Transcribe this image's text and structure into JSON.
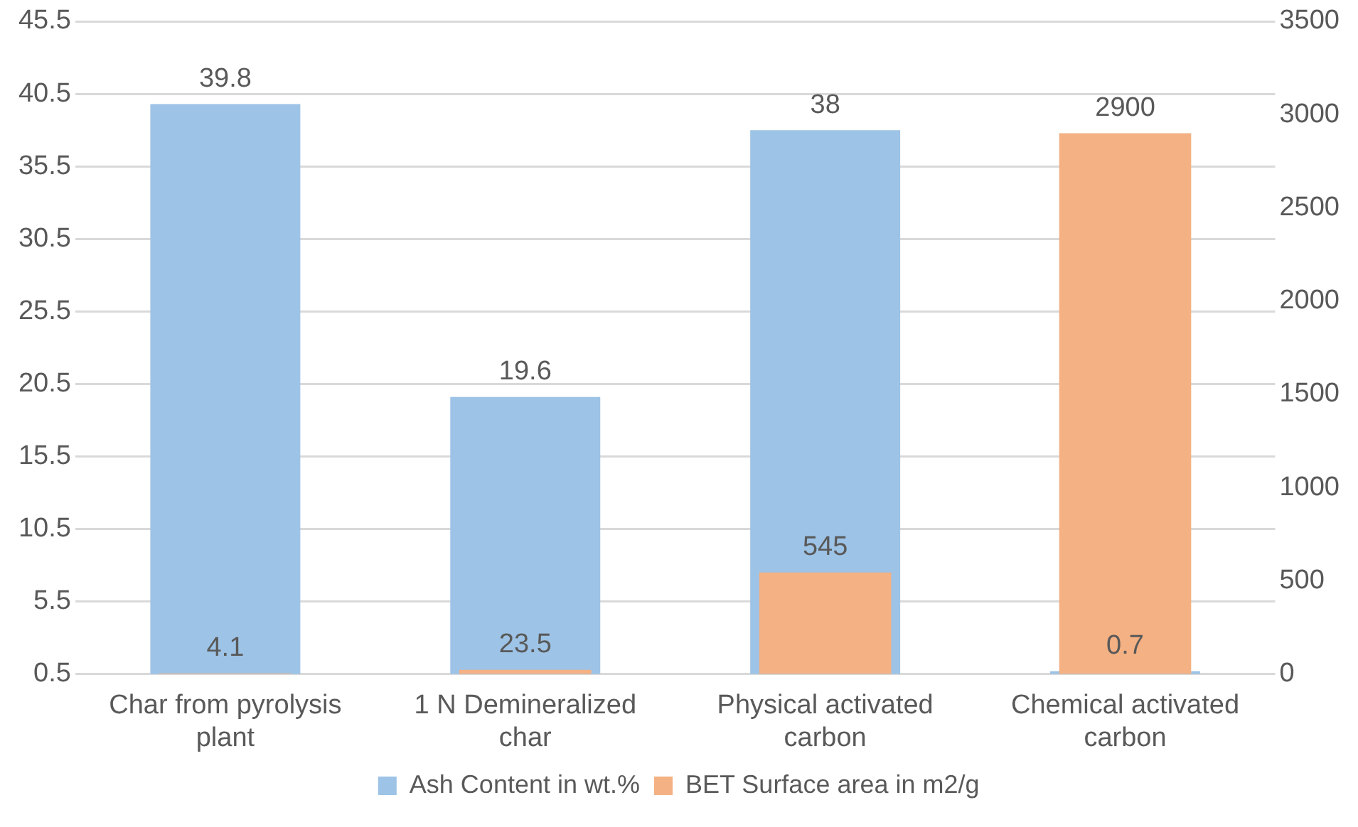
{
  "chart_data": {
    "type": "bar",
    "categories": [
      "Char from pyrolysis plant",
      "1 N Demineralized char",
      "Physical activated carbon",
      "Chemical activated carbon"
    ],
    "series": [
      {
        "name": "Ash Content in wt.%",
        "color": "#9dc3e6",
        "values": [
          39.8,
          19.6,
          38,
          0.7
        ]
      },
      {
        "name": "BET Surface area in m2/g",
        "color": "#f4b183",
        "axis": "y2",
        "values": [
          4.1,
          23.5,
          545,
          2900
        ]
      }
    ],
    "ylim": [
      0.5,
      45.5
    ],
    "yticks": [
      0.5,
      5.5,
      10.5,
      15.5,
      20.5,
      25.5,
      30.5,
      35.5,
      40.5,
      45.5
    ],
    "y2lim": [
      0,
      3500
    ],
    "y2ticks": [
      0,
      500,
      1000,
      1500,
      2000,
      2500,
      3000,
      3500
    ],
    "data_labels": true,
    "grid": "y",
    "legend": "bottom"
  }
}
